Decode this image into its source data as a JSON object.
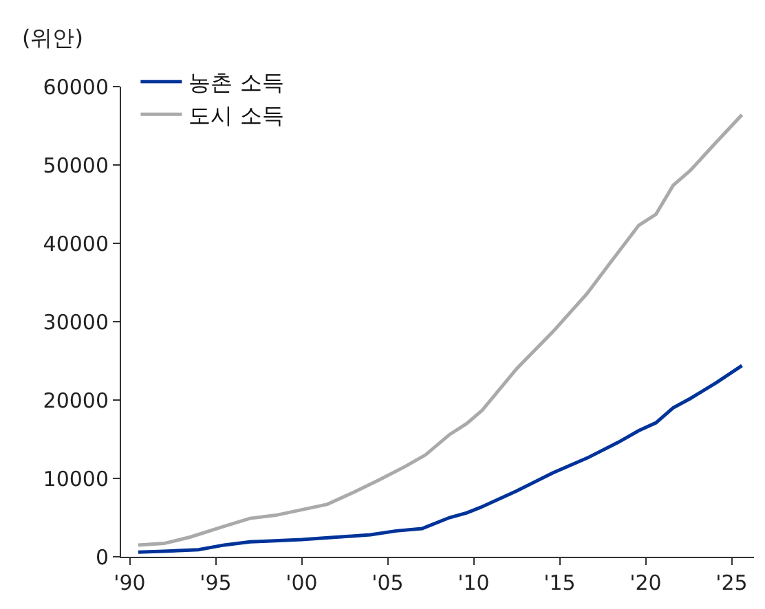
{
  "chart_data": {
    "type": "line",
    "ylabel": "(위안)",
    "series": [
      {
        "name": "농촌 소득",
        "color": "#003399",
        "x": [
          1990.5,
          1992,
          1994,
          1995.5,
          1997,
          1998,
          2000,
          2002,
          2004,
          2005.5,
          2007,
          2008.6,
          2009.6,
          2010.4,
          2012.5,
          2014.6,
          2016.6,
          2018.4,
          2019.6,
          2020.6,
          2021.6,
          2022.6,
          2024.1,
          2025.6
        ],
        "values": [
          600,
          700,
          900,
          1500,
          1900,
          2000,
          2200,
          2500,
          2800,
          3300,
          3600,
          5000,
          5600,
          6300,
          8400,
          10700,
          12600,
          14600,
          16100,
          17100,
          19000,
          20200,
          22200,
          24400
        ]
      },
      {
        "name": "도시 소득",
        "color": "#aaaaaa",
        "x": [
          1990.5,
          1992,
          1993.5,
          1995.5,
          1997,
          1998.5,
          2000,
          2001.5,
          2003,
          2004.5,
          2006,
          2007.2,
          2008.6,
          2009.6,
          2010.5,
          2012.5,
          2014.6,
          2016.6,
          2017.8,
          2019.6,
          2020.6,
          2021.6,
          2022.6,
          2024.1,
          2025.6
        ],
        "values": [
          1500,
          1700,
          2500,
          3900,
          4900,
          5300,
          6000,
          6700,
          8200,
          9800,
          11500,
          13000,
          15600,
          17000,
          18700,
          24000,
          28700,
          33600,
          37100,
          42300,
          43700,
          47400,
          49300,
          52900,
          56400
        ]
      }
    ],
    "xlim": [
      1989.5,
      2026.3
    ],
    "xticks": [
      {
        "value": 1990,
        "label": "'90"
      },
      {
        "value": 1995,
        "label": "'95"
      },
      {
        "value": 2000,
        "label": "'00"
      },
      {
        "value": 2005,
        "label": "'05"
      },
      {
        "value": 2010,
        "label": "'10"
      },
      {
        "value": 2015,
        "label": "'15"
      },
      {
        "value": 2020,
        "label": "'20"
      },
      {
        "value": 2025,
        "label": "'25"
      }
    ],
    "ylim": [
      0,
      60000
    ],
    "yticks": [
      0,
      10000,
      20000,
      30000,
      40000,
      50000,
      60000
    ],
    "legend": "top left",
    "marker": "none",
    "line_style": "solid"
  }
}
